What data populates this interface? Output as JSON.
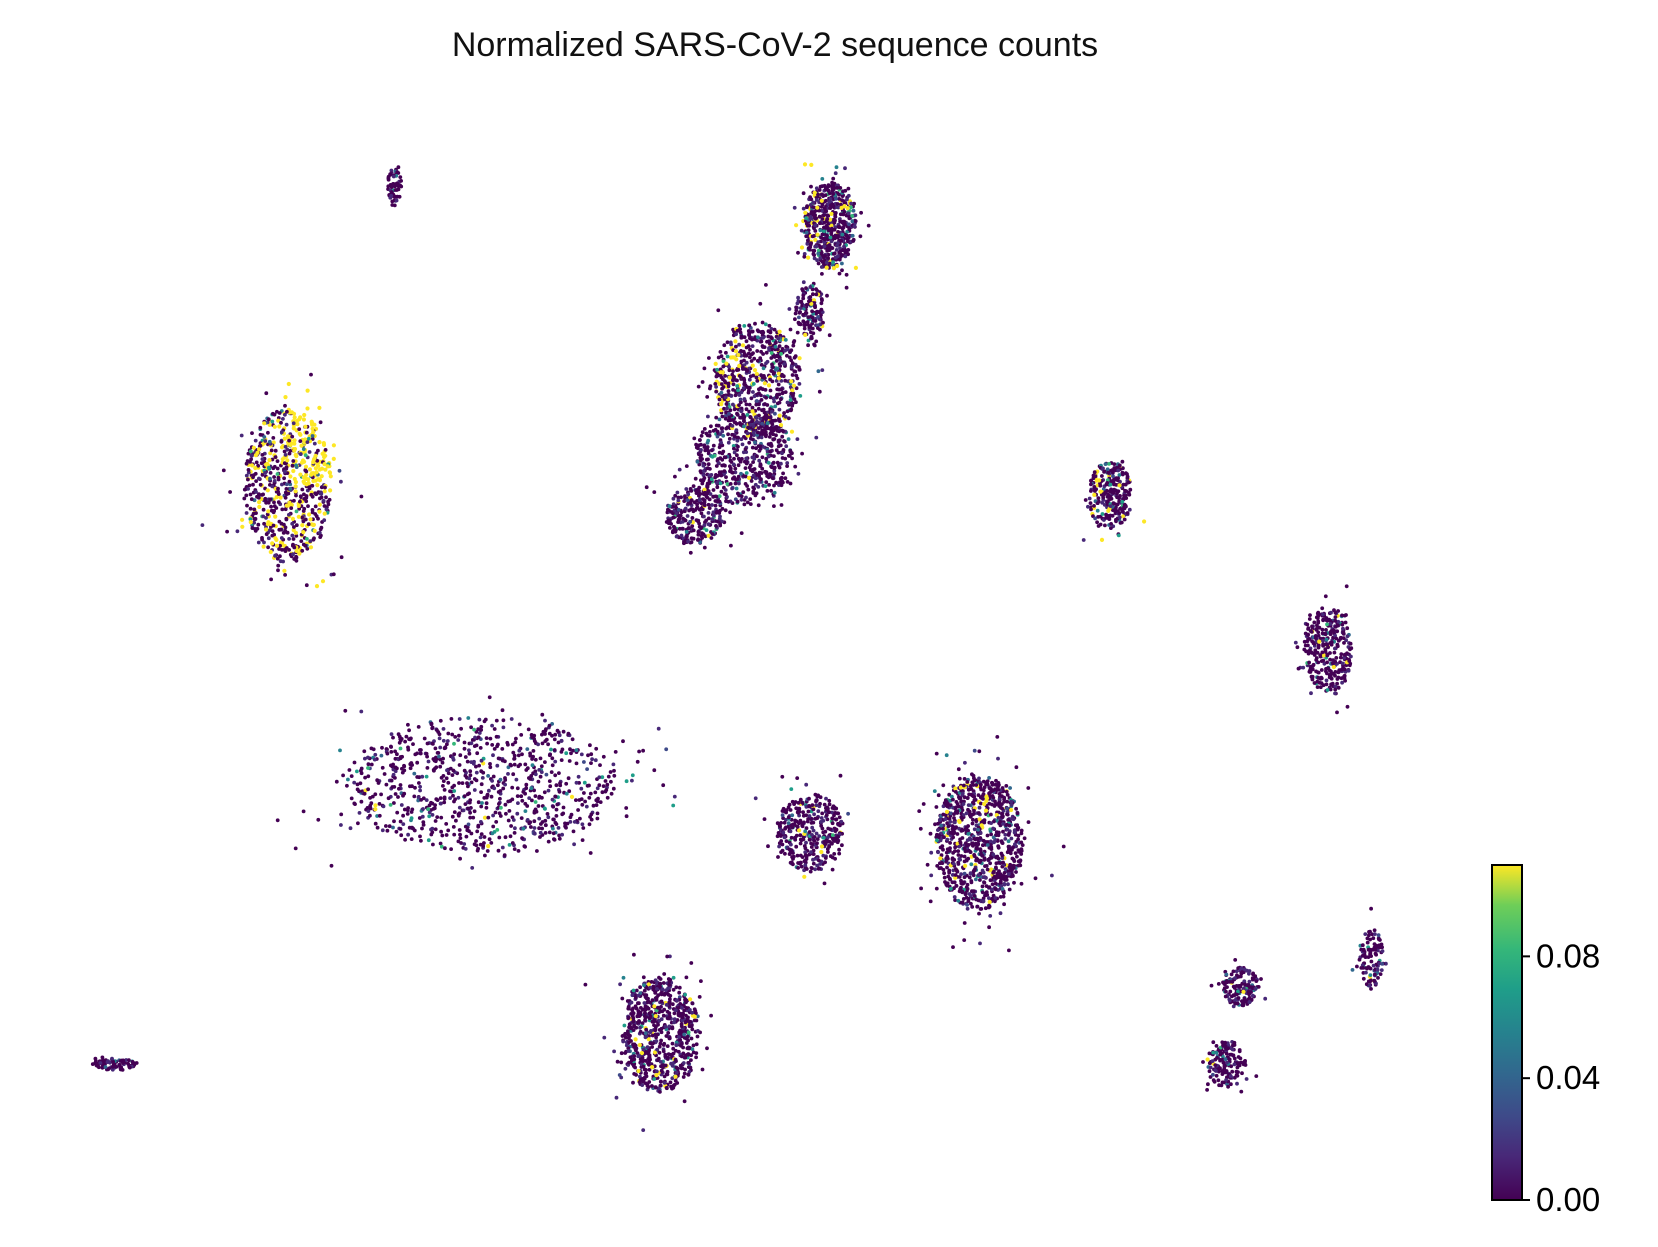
{
  "chart_data": {
    "type": "scatter",
    "title": "Normalized SARS-CoV-2 sequence counts",
    "xlabel": "",
    "ylabel": "",
    "axes_visible": false,
    "colormap": "viridis",
    "colorbar": {
      "range": [
        0.0,
        0.11
      ],
      "ticks": [
        0.0,
        0.04,
        0.08
      ],
      "tick_labels": [
        "0.00",
        "0.04",
        "0.08"
      ],
      "placement": "bottom-right"
    },
    "clusters": [
      {
        "id": "top-center-a",
        "cx": 0.3,
        "cy": 0.86,
        "rx": 0.055,
        "ry": 0.045,
        "n": 520,
        "hot_fraction": 0.06,
        "hot_side": "left"
      },
      {
        "id": "top-center-a-stalk",
        "cx": 0.26,
        "cy": 0.77,
        "rx": 0.03,
        "ry": 0.03,
        "n": 140,
        "hot_fraction": 0.03,
        "hot_side": "none"
      },
      {
        "id": "upper-center",
        "cx": 0.15,
        "cy": 0.7,
        "rx": 0.09,
        "ry": 0.06,
        "n": 620,
        "hot_fraction": 0.08,
        "hot_side": "left"
      },
      {
        "id": "upper-center-lower",
        "cx": 0.12,
        "cy": 0.62,
        "rx": 0.1,
        "ry": 0.05,
        "n": 520,
        "hot_fraction": 0.01,
        "hot_side": "none"
      },
      {
        "id": "upper-center-arm",
        "cx": 0.02,
        "cy": 0.56,
        "rx": 0.06,
        "ry": 0.03,
        "n": 260,
        "hot_fraction": 0.01,
        "hot_side": "none"
      },
      {
        "id": "top-left-small",
        "cx": -0.6,
        "cy": 0.9,
        "rx": 0.015,
        "ry": 0.02,
        "n": 60,
        "hot_fraction": 0.0,
        "hot_side": "none"
      },
      {
        "id": "left-hot",
        "cx": -0.82,
        "cy": 0.59,
        "rx": 0.09,
        "ry": 0.08,
        "n": 720,
        "hot_fraction": 0.22,
        "hot_side": "top-right"
      },
      {
        "id": "right-mid",
        "cx": 0.88,
        "cy": 0.58,
        "rx": 0.045,
        "ry": 0.035,
        "n": 260,
        "hot_fraction": 0.05,
        "hot_side": "left"
      },
      {
        "id": "right-round",
        "cx": 1.33,
        "cy": 0.42,
        "rx": 0.05,
        "ry": 0.045,
        "n": 330,
        "hot_fraction": 0.03,
        "hot_side": "none"
      },
      {
        "id": "left-arc",
        "cx": -0.42,
        "cy": 0.28,
        "rx": 0.28,
        "ry": 0.07,
        "n": 900,
        "hot_fraction": 0.01,
        "hot_side": "none"
      },
      {
        "id": "center-right-large",
        "cx": 0.61,
        "cy": 0.22,
        "rx": 0.09,
        "ry": 0.07,
        "n": 900,
        "hot_fraction": 0.05,
        "hot_side": "none"
      },
      {
        "id": "center-mid",
        "cx": 0.26,
        "cy": 0.23,
        "rx": 0.07,
        "ry": 0.04,
        "n": 360,
        "hot_fraction": 0.02,
        "hot_side": "none"
      },
      {
        "id": "bottom-center",
        "cx": -0.05,
        "cy": 0.02,
        "rx": 0.08,
        "ry": 0.06,
        "n": 700,
        "hot_fraction": 0.03,
        "hot_side": "none"
      },
      {
        "id": "bottom-right-a",
        "cx": 1.15,
        "cy": 0.07,
        "rx": 0.04,
        "ry": 0.02,
        "n": 150,
        "hot_fraction": 0.02,
        "hot_side": "none"
      },
      {
        "id": "bottom-right-b",
        "cx": 1.12,
        "cy": -0.01,
        "rx": 0.04,
        "ry": 0.025,
        "n": 150,
        "hot_fraction": 0.02,
        "hot_side": "none"
      },
      {
        "id": "far-right-small",
        "cx": 1.42,
        "cy": 0.1,
        "rx": 0.025,
        "ry": 0.03,
        "n": 110,
        "hot_fraction": 0.03,
        "hot_side": "none"
      },
      {
        "id": "far-left-strip",
        "cx": -1.18,
        "cy": -0.01,
        "rx": 0.045,
        "ry": 0.006,
        "n": 80,
        "hot_fraction": 0.0,
        "hot_side": "none"
      }
    ]
  }
}
